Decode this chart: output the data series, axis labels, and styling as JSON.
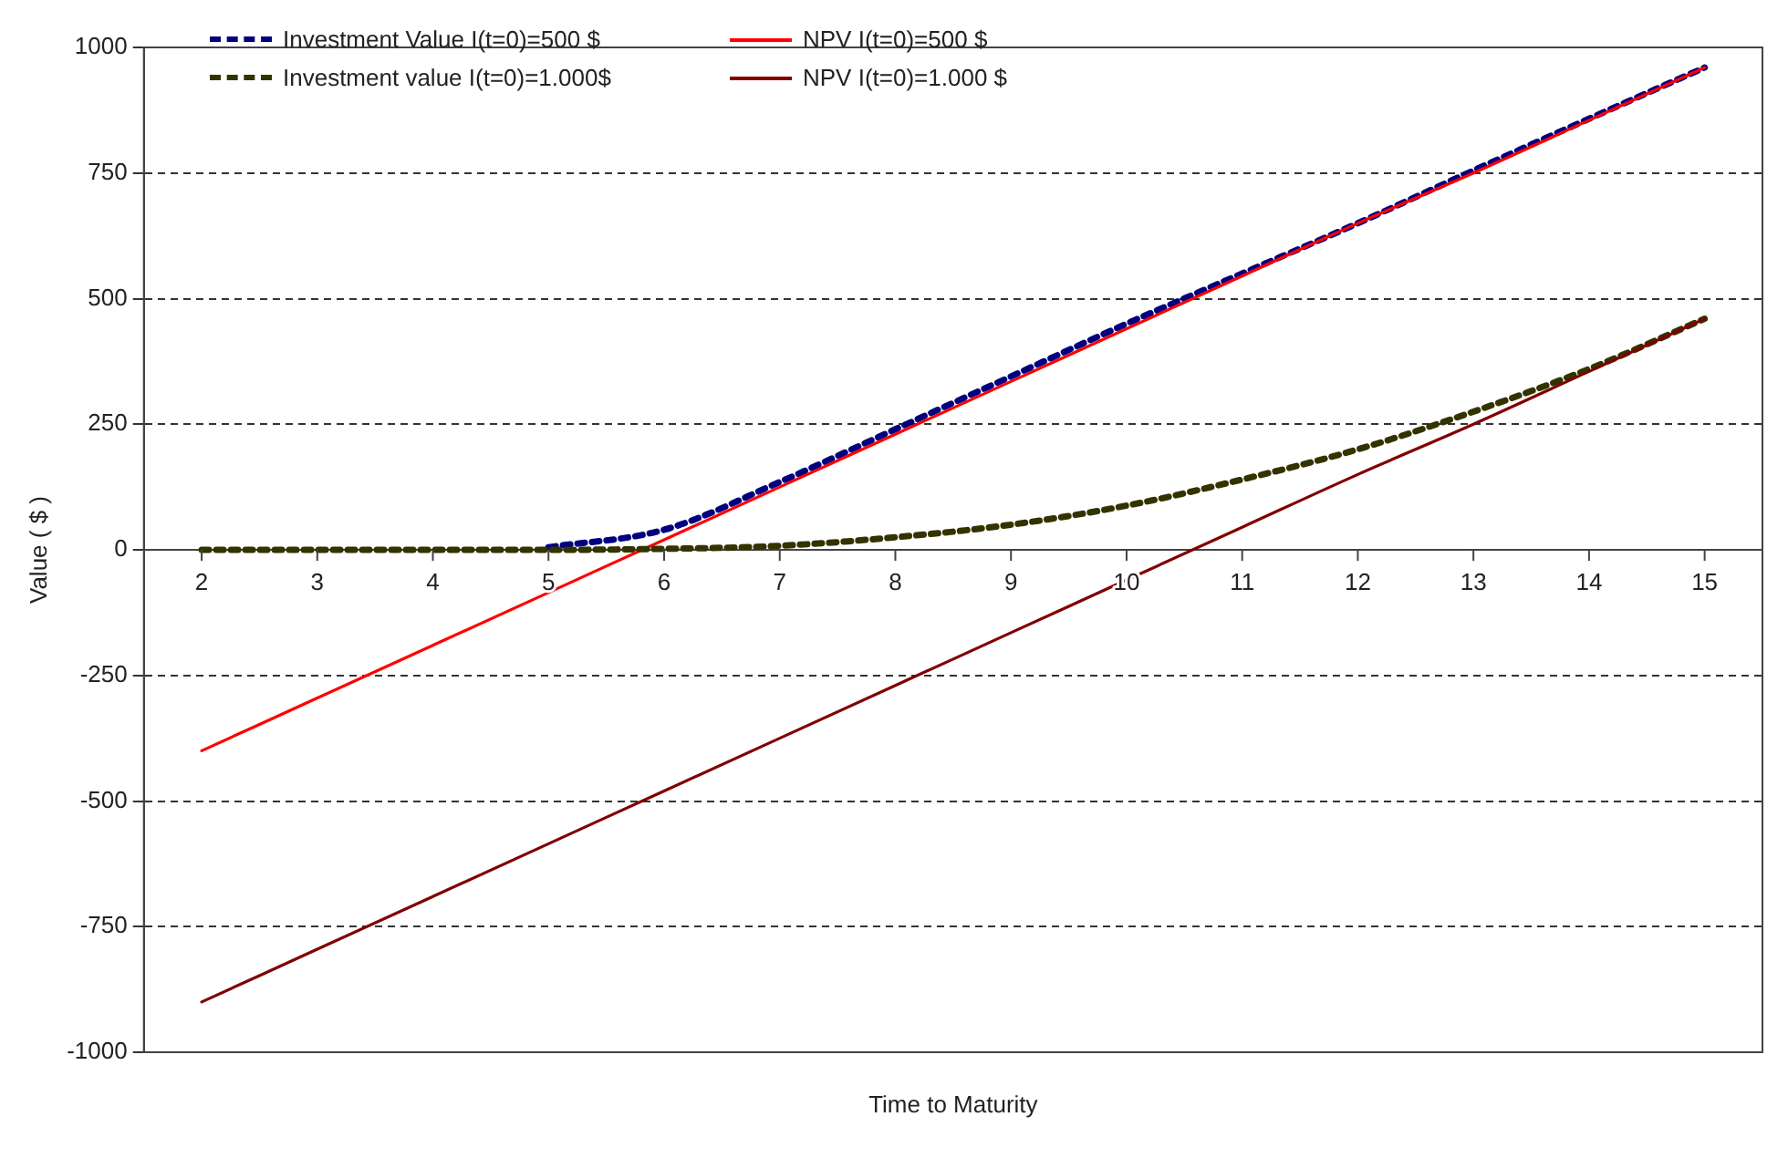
{
  "chart_data": {
    "type": "line",
    "xlabel": "Time to Maturity",
    "ylabel": "Value ( $ )",
    "categories": [
      "2",
      "3",
      "4",
      "5",
      "6",
      "7",
      "8",
      "9",
      "10",
      "11",
      "12",
      "13",
      "14",
      "15"
    ],
    "series": [
      {
        "name": "Investment Value I(t=0)=500 $",
        "color": "#000080",
        "line_style": "dashed",
        "values": [
          null,
          null,
          null,
          5,
          40,
          135,
          240,
          345,
          450,
          550,
          650,
          755,
          858,
          960
        ]
      },
      {
        "name": "NPV I(t=0)=500 $",
        "color": "#ff0000",
        "line_style": "solid",
        "values": [
          -400,
          -295,
          -190,
          -85,
          20,
          125,
          230,
          335,
          440,
          545,
          650,
          750,
          855,
          960
        ]
      },
      {
        "name": "Investment value I(t=0)=1.000$",
        "color": "#333300",
        "line_style": "dashed",
        "values": [
          0,
          0,
          0,
          0,
          2,
          8,
          25,
          50,
          88,
          140,
          200,
          275,
          360,
          460
        ]
      },
      {
        "name": "NPV I(t=0)=1.000 $",
        "color": "#800000",
        "line_style": "solid",
        "values": [
          -900,
          -795,
          -690,
          -585,
          -480,
          -375,
          -270,
          -165,
          -60,
          45,
          150,
          250,
          355,
          460
        ]
      }
    ],
    "ylim": [
      -1000,
      1000
    ],
    "yticks": [
      -1000,
      -750,
      -500,
      -250,
      0,
      250,
      500,
      750,
      1000
    ],
    "grid": "y",
    "legend": "top left",
    "marker": "none"
  }
}
